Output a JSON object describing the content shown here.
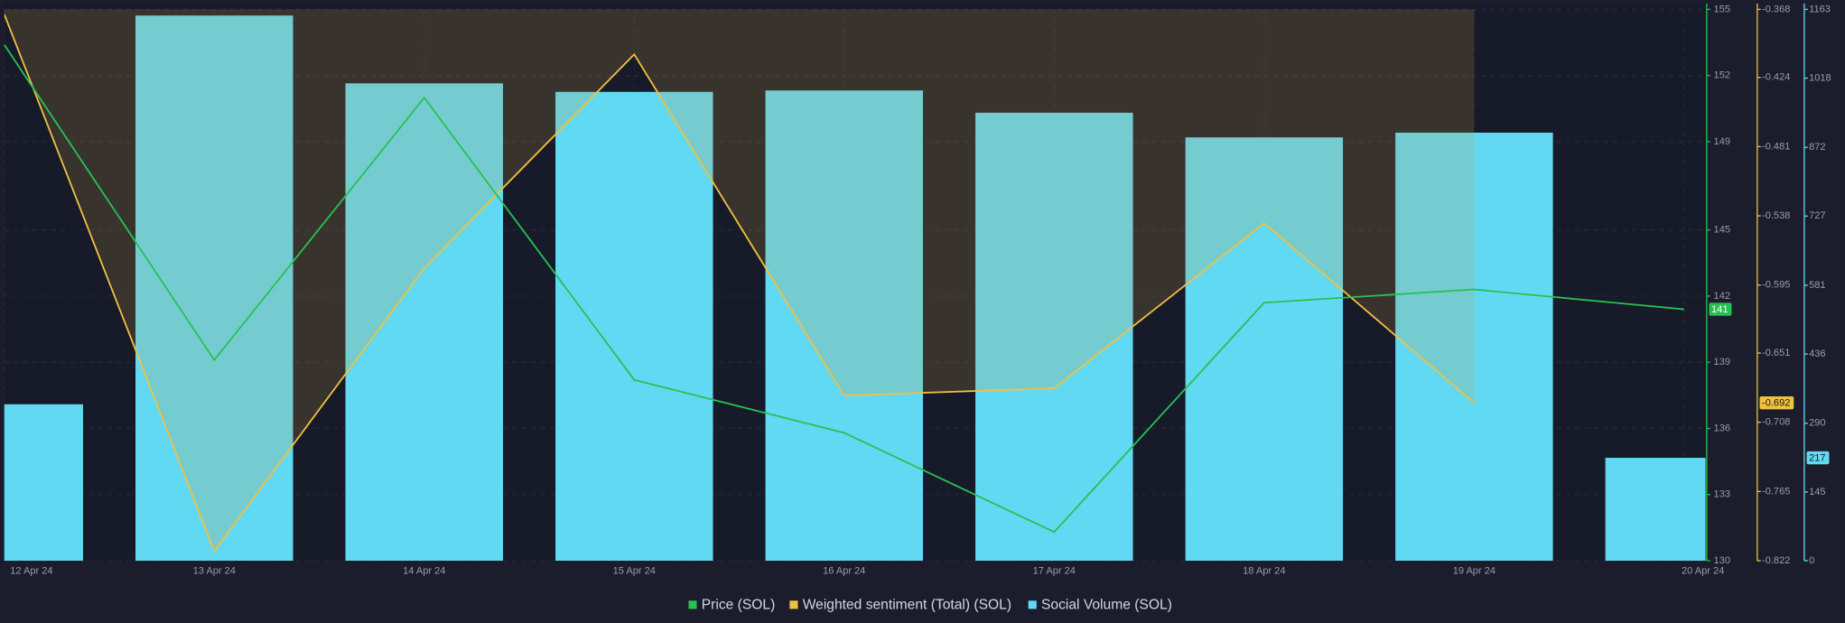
{
  "chart_data": {
    "type": "combo",
    "categories": [
      "12 Apr 24",
      "13 Apr 24",
      "14 Apr 24",
      "15 Apr 24",
      "16 Apr 24",
      "17 Apr 24",
      "18 Apr 24",
      "19 Apr 24",
      "20 Apr 24"
    ],
    "series": [
      {
        "name": "Price (SOL)",
        "type": "line",
        "axis": "y",
        "color": "#27c152",
        "values": [
          153.4,
          139.1,
          151.0,
          138.2,
          135.8,
          131.3,
          141.7,
          142.3,
          141.4
        ],
        "value_labels": [
          null,
          null,
          null,
          null,
          null,
          null,
          null,
          null,
          "141"
        ]
      },
      {
        "name": "Weighted sentiment (Total) (SOL)",
        "type": "area-line",
        "axis": "y2",
        "color": "#f0c040",
        "values": [
          -0.372,
          -0.814,
          -0.581,
          -0.405,
          -0.686,
          -0.68,
          -0.544,
          -0.692,
          null
        ],
        "value_labels": [
          null,
          null,
          null,
          null,
          null,
          null,
          null,
          "-0.692",
          null
        ]
      },
      {
        "name": "Social Volume (SOL)",
        "type": "bar",
        "axis": "y3",
        "color": "#62d9f3",
        "values": [
          330,
          1150,
          1007,
          989,
          992,
          945,
          893,
          903,
          217
        ],
        "value_labels": [
          null,
          null,
          null,
          null,
          null,
          null,
          null,
          null,
          "217"
        ]
      }
    ],
    "ylim": [
      130,
      155
    ],
    "yticks": [
      155,
      152,
      149,
      145,
      142,
      139,
      136,
      133,
      130
    ],
    "y2lim": [
      -0.822,
      -0.368
    ],
    "y2ticks": [
      -0.368,
      -0.424,
      -0.481,
      -0.538,
      -0.595,
      -0.651,
      -0.708,
      -0.765,
      -0.822
    ],
    "y3lim": [
      0,
      1163
    ],
    "y3ticks": [
      1163,
      1018,
      872,
      727,
      581,
      436,
      290,
      145,
      0
    ],
    "grid": true,
    "legend": "bottom"
  }
}
